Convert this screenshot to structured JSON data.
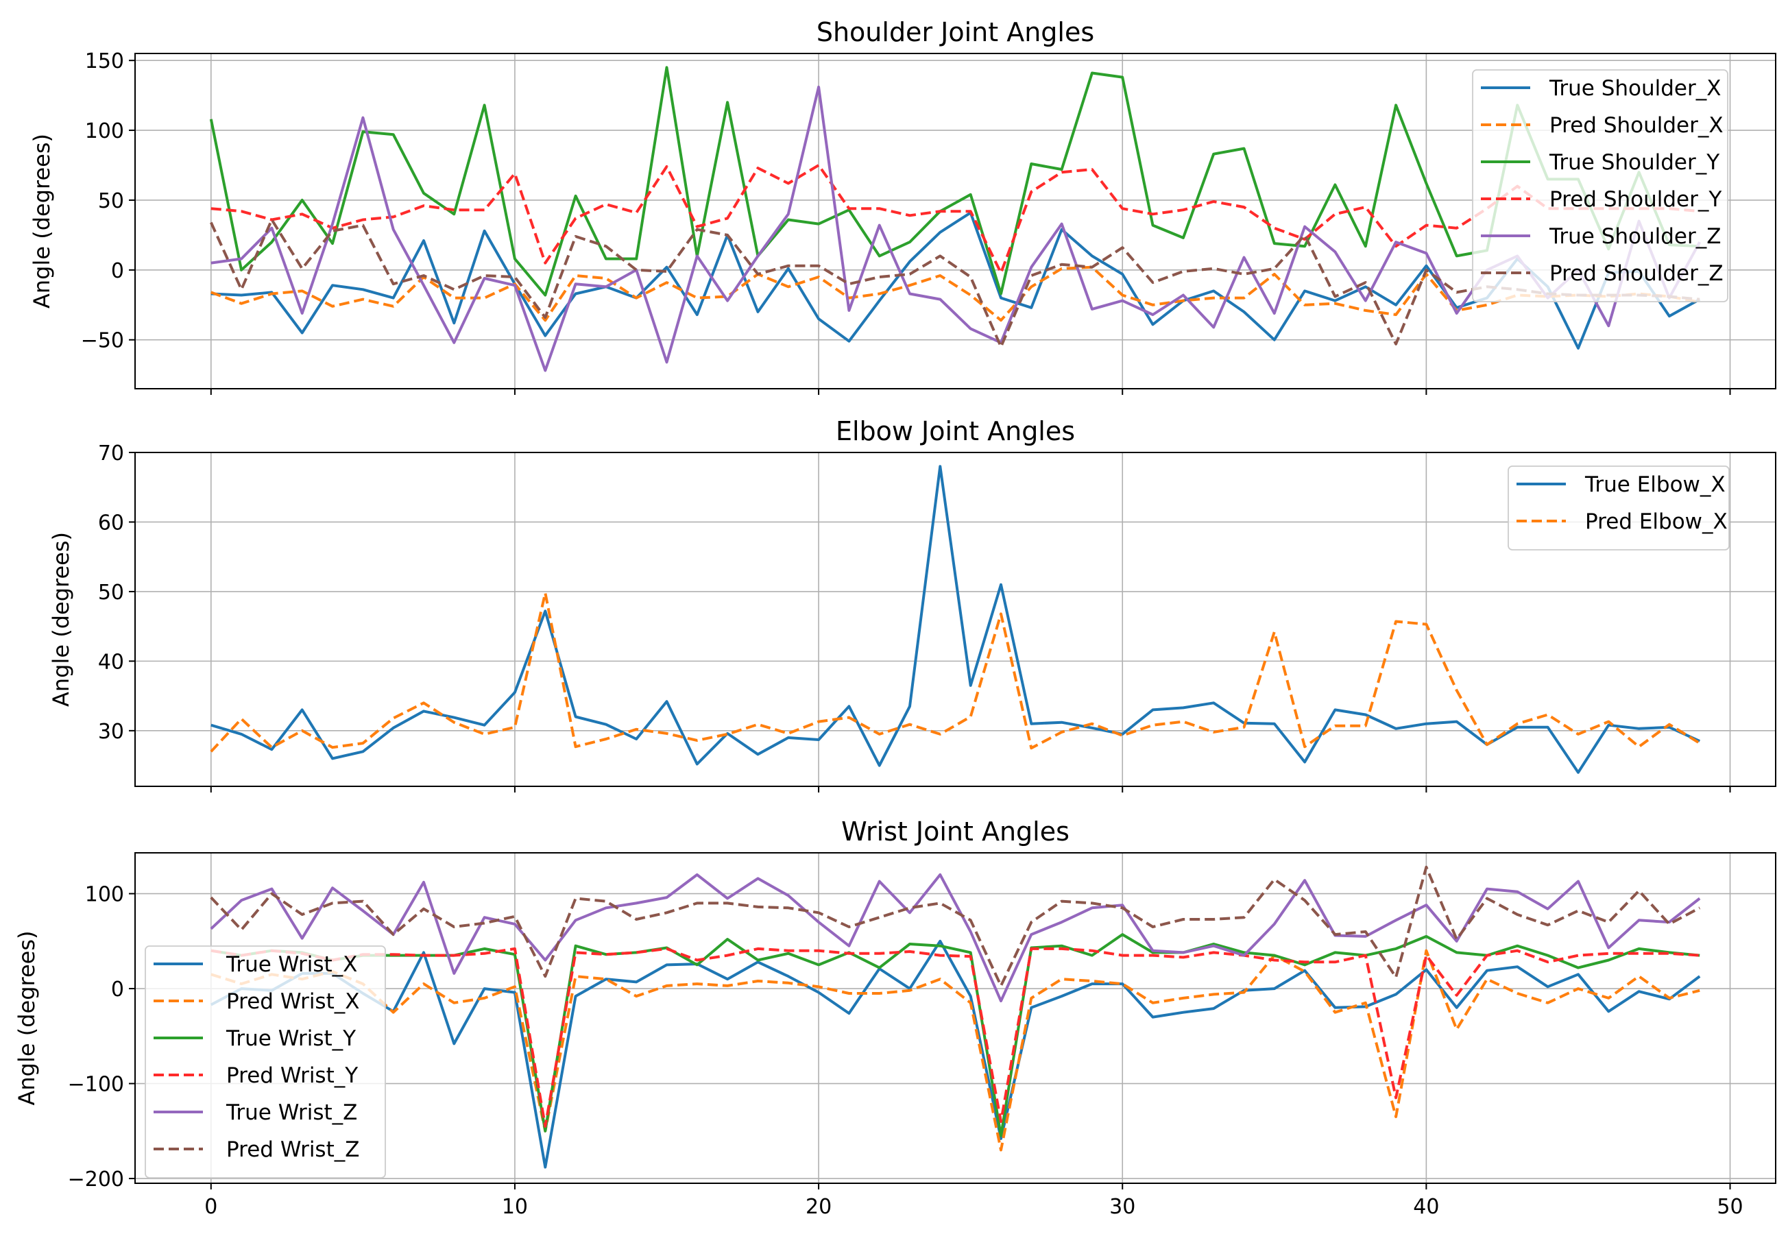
{
  "chart_data": [
    {
      "id": "shoulder",
      "type": "line",
      "title": "Shoulder Joint Angles",
      "xlabel": "",
      "ylabel": "Angle (degrees)",
      "xlim": [
        -2.5,
        51.5
      ],
      "ylim": [
        -85,
        155
      ],
      "xticks": [
        0,
        10,
        20,
        30,
        40,
        50
      ],
      "show_xtick_labels": false,
      "yticks": [
        -50,
        0,
        50,
        100,
        150
      ],
      "ytick_labels": [
        "−50",
        "0",
        "50",
        "100",
        "150"
      ],
      "grid": true,
      "legend_position": "top-right",
      "series": [
        {
          "name": "True Shoulder_X",
          "color": "#1f77b4",
          "dash": "solid",
          "values": [
            -17,
            -18,
            -16,
            -45,
            -11,
            -14,
            -20,
            21,
            -38,
            28,
            -10,
            -47,
            -17,
            -12,
            -20,
            2,
            -32,
            25,
            -30,
            1,
            -35,
            -51,
            -22,
            6,
            27,
            41,
            -20,
            -27,
            29,
            10,
            -3,
            -39,
            -22,
            -15,
            -30,
            -50,
            -15,
            -22,
            -12,
            -25,
            3,
            -27,
            -20,
            8,
            -12,
            -56,
            -2,
            -1,
            -33,
            -21
          ]
        },
        {
          "name": "Pred Shoulder_X",
          "color": "#ff7f0e",
          "dash": "dashed",
          "values": [
            -16,
            -24,
            -17,
            -15,
            -26,
            -21,
            -26,
            -5,
            -20,
            -20,
            -10,
            -36,
            -4,
            -6,
            -20,
            -9,
            -20,
            -19,
            -3,
            -12,
            -5,
            -20,
            -17,
            -11,
            -4,
            -18,
            -36,
            -12,
            1,
            2,
            -18,
            -25,
            -22,
            -20,
            -20,
            -3,
            -25,
            -24,
            -29,
            -32,
            -3,
            -29,
            -25,
            -18,
            -19,
            -18,
            -19,
            -17,
            -19,
            -23
          ]
        },
        {
          "name": "True Shoulder_Y",
          "color": "#2ca02c",
          "dash": "solid",
          "values": [
            108,
            0,
            20,
            50,
            19,
            99,
            97,
            55,
            40,
            118,
            8,
            -18,
            53,
            8,
            8,
            145,
            10,
            120,
            10,
            36,
            33,
            43,
            10,
            20,
            42,
            54,
            -17,
            76,
            72,
            141,
            138,
            32,
            23,
            83,
            87,
            19,
            17,
            61,
            17,
            118,
            62,
            10,
            14,
            118,
            65,
            65,
            15,
            70,
            18,
            17
          ]
        },
        {
          "name": "Pred Shoulder_Y",
          "color": "#ff2a2a",
          "dash": "dashed",
          "values": [
            44,
            42,
            36,
            40,
            30,
            36,
            38,
            46,
            43,
            43,
            69,
            5,
            37,
            47,
            41,
            74,
            31,
            37,
            73,
            62,
            75,
            44,
            44,
            39,
            42,
            42,
            -2,
            56,
            70,
            72,
            44,
            40,
            43,
            49,
            45,
            30,
            22,
            40,
            45,
            17,
            32,
            30,
            44,
            60,
            44,
            44,
            44,
            44,
            44,
            42
          ]
        },
        {
          "name": "True Shoulder_Z",
          "color": "#9467bd",
          "dash": "solid",
          "values": [
            5,
            8,
            30,
            -31,
            33,
            109,
            29,
            -11,
            -52,
            -6,
            -11,
            -72,
            -10,
            -12,
            0,
            -66,
            10,
            -22,
            10,
            40,
            131,
            -29,
            32,
            -17,
            -21,
            -42,
            -52,
            2,
            33,
            -28,
            -22,
            -32,
            -18,
            -41,
            9,
            -31,
            31,
            13,
            -22,
            20,
            12,
            -31,
            0,
            10,
            -20,
            0,
            -40,
            35,
            -20,
            20
          ]
        },
        {
          "name": "Pred Shoulder_Z",
          "color": "#8c564b",
          "dash": "dashed",
          "values": [
            34,
            -14,
            36,
            1,
            28,
            32,
            -10,
            -4,
            -14,
            -4,
            -5,
            -34,
            24,
            17,
            0,
            -1,
            29,
            25,
            -3,
            3,
            3,
            -10,
            -5,
            -3,
            10,
            -5,
            -55,
            -4,
            4,
            2,
            16,
            -9,
            -1,
            1,
            -3,
            1,
            25,
            -19,
            -9,
            -53,
            0,
            -16,
            -12,
            -14,
            -17,
            -18,
            -18,
            -18,
            -19,
            -21
          ]
        }
      ]
    },
    {
      "id": "elbow",
      "type": "line",
      "title": "Elbow Joint Angles",
      "xlabel": "",
      "ylabel": "Angle (degrees)",
      "xlim": [
        -2.5,
        51.5
      ],
      "ylim": [
        22,
        70
      ],
      "xticks": [
        0,
        10,
        20,
        30,
        40,
        50
      ],
      "show_xtick_labels": false,
      "yticks": [
        30,
        40,
        50,
        60,
        70
      ],
      "ytick_labels": [
        "30",
        "40",
        "50",
        "60",
        "70"
      ],
      "grid": true,
      "legend_position": "top-right",
      "series": [
        {
          "name": "True Elbow_X",
          "color": "#1f77b4",
          "dash": "solid",
          "values": [
            30.8,
            29.5,
            27.3,
            33.0,
            26.0,
            27.0,
            30.4,
            32.8,
            31.9,
            30.8,
            35.5,
            47.2,
            32.0,
            30.9,
            28.8,
            34.2,
            25.2,
            29.6,
            26.6,
            29.0,
            28.7,
            33.5,
            25.0,
            33.5,
            68.0,
            36.5,
            51.0,
            31.0,
            31.2,
            30.4,
            29.5,
            33.0,
            33.3,
            34.0,
            31.1,
            31.0,
            25.5,
            33.0,
            32.3,
            30.3,
            31.0,
            31.3,
            28.0,
            30.5,
            30.5,
            24.0,
            30.8,
            30.3,
            30.5,
            28.5
          ]
        },
        {
          "name": "Pred Elbow_X",
          "color": "#ff7f0e",
          "dash": "dashed",
          "values": [
            27.0,
            31.7,
            27.6,
            30.0,
            27.6,
            28.2,
            31.8,
            34.0,
            31.2,
            29.5,
            30.5,
            49.8,
            27.7,
            28.8,
            30.2,
            29.6,
            28.6,
            29.5,
            30.9,
            29.6,
            31.3,
            31.9,
            29.5,
            30.9,
            29.5,
            32.0,
            46.8,
            27.5,
            29.8,
            31.0,
            29.3,
            30.8,
            31.3,
            29.8,
            30.5,
            44.2,
            27.7,
            30.7,
            30.7,
            45.7,
            45.3,
            35.8,
            28.0,
            31.0,
            32.3,
            29.5,
            31.3,
            27.7,
            30.9,
            28.2
          ]
        }
      ]
    },
    {
      "id": "wrist",
      "type": "line",
      "title": "Wrist Joint Angles",
      "xlabel": "",
      "ylabel": "Angle (degrees)",
      "xlim": [
        -2.5,
        51.5
      ],
      "ylim": [
        -205,
        143
      ],
      "xticks": [
        0,
        10,
        20,
        30,
        40,
        50
      ],
      "show_xtick_labels": true,
      "xtick_labels": [
        "0",
        "10",
        "20",
        "30",
        "40",
        "50"
      ],
      "yticks": [
        -200,
        -100,
        0,
        100
      ],
      "ytick_labels": [
        "−200",
        "−100",
        "0",
        "100"
      ],
      "grid": true,
      "legend_position": "center-left",
      "series": [
        {
          "name": "True Wrist_X",
          "color": "#1f77b4",
          "dash": "solid",
          "values": [
            -17,
            0,
            -2,
            16,
            16,
            -5,
            -24,
            38,
            -58,
            0,
            -4,
            -188,
            -8,
            10,
            7,
            25,
            26,
            10,
            28,
            13,
            -4,
            -26,
            21,
            0,
            50,
            -8,
            -158,
            -20,
            -8,
            5,
            5,
            -30,
            -25,
            -21,
            -2,
            0,
            19,
            -20,
            -19,
            -6,
            20,
            -20,
            19,
            23,
            2,
            15,
            -24,
            -3,
            -11,
            13
          ]
        },
        {
          "name": "Pred Wrist_X",
          "color": "#ff7f0e",
          "dash": "dashed",
          "values": [
            15,
            5,
            15,
            10,
            18,
            5,
            -25,
            5,
            -15,
            -10,
            2,
            -150,
            13,
            10,
            -8,
            3,
            5,
            3,
            8,
            6,
            2,
            -5,
            -5,
            -2,
            10,
            -15,
            -170,
            -10,
            10,
            8,
            5,
            -15,
            -10,
            -6,
            -4,
            35,
            18,
            -25,
            -15,
            -135,
            40,
            -43,
            10,
            -5,
            -15,
            0,
            -10,
            13,
            -10,
            -2
          ]
        },
        {
          "name": "True Wrist_Y",
          "color": "#2ca02c",
          "dash": "solid",
          "values": [
            40,
            35,
            40,
            38,
            30,
            35,
            35,
            35,
            35,
            42,
            36,
            -150,
            45,
            36,
            38,
            43,
            25,
            52,
            30,
            37,
            25,
            38,
            22,
            47,
            45,
            38,
            -155,
            43,
            45,
            35,
            57,
            38,
            38,
            47,
            38,
            35,
            25,
            38,
            35,
            42,
            55,
            38,
            35,
            45,
            35,
            22,
            30,
            42,
            38,
            35
          ]
        },
        {
          "name": "Pred Wrist_Y",
          "color": "#ff2a2a",
          "dash": "dashed",
          "values": [
            40,
            35,
            40,
            37,
            30,
            36,
            36,
            35,
            35,
            37,
            42,
            -145,
            38,
            36,
            38,
            42,
            30,
            35,
            42,
            40,
            40,
            37,
            37,
            39,
            35,
            34,
            -140,
            42,
            42,
            40,
            35,
            35,
            33,
            38,
            35,
            30,
            28,
            28,
            35,
            -115,
            35,
            -7,
            35,
            40,
            28,
            35,
            37,
            37,
            37,
            35
          ]
        },
        {
          "name": "True Wrist_Z",
          "color": "#9467bd",
          "dash": "solid",
          "values": [
            63,
            93,
            105,
            53,
            106,
            82,
            57,
            112,
            16,
            75,
            68,
            30,
            72,
            85,
            90,
            96,
            120,
            95,
            116,
            98,
            70,
            45,
            113,
            80,
            120,
            60,
            -13,
            57,
            70,
            85,
            88,
            40,
            38,
            45,
            35,
            68,
            114,
            56,
            55,
            72,
            88,
            50,
            105,
            102,
            84,
            113,
            43,
            72,
            70,
            95
          ]
        },
        {
          "name": "Pred Wrist_Z",
          "color": "#8c564b",
          "dash": "dashed",
          "values": [
            96,
            62,
            100,
            78,
            90,
            92,
            57,
            84,
            65,
            69,
            76,
            13,
            95,
            92,
            73,
            80,
            90,
            90,
            86,
            85,
            80,
            65,
            75,
            85,
            90,
            72,
            3,
            70,
            92,
            90,
            85,
            65,
            73,
            73,
            75,
            115,
            93,
            57,
            60,
            12,
            128,
            52,
            95,
            78,
            67,
            82,
            70,
            103,
            68,
            85
          ]
        }
      ]
    }
  ]
}
